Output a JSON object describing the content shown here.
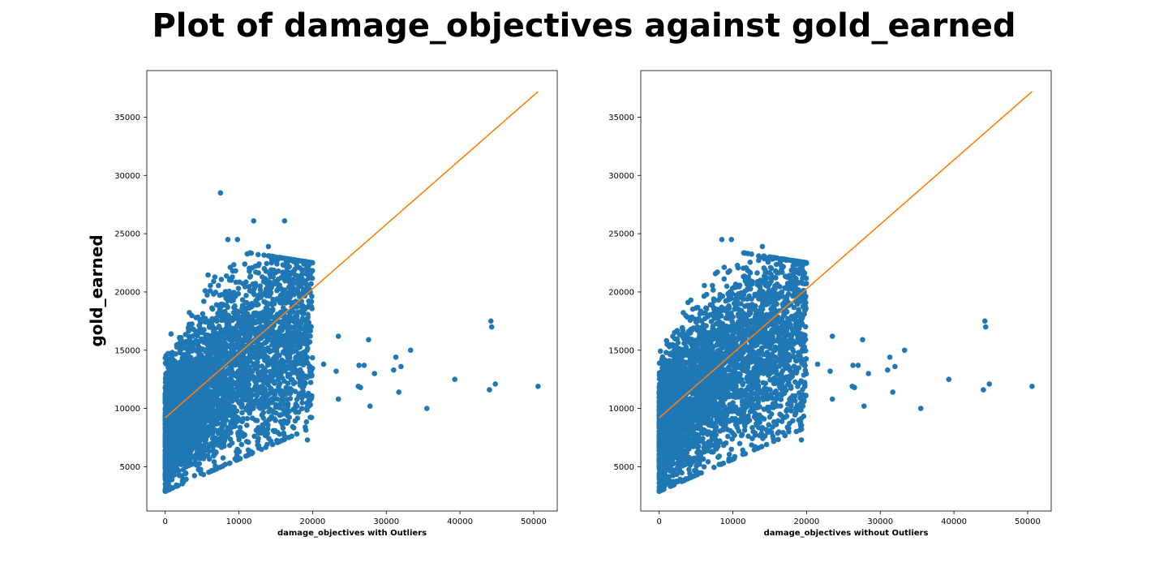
{
  "title": "Plot of damage_objectives against gold_earned",
  "chart_data": [
    {
      "type": "scatter",
      "xlabel": "damage_objectives with Outliers",
      "ylabel": "gold_earned",
      "xlim": [
        -2500,
        53200
      ],
      "ylim": [
        1200,
        39000
      ],
      "xticks": [
        0,
        10000,
        20000,
        30000,
        40000,
        50000
      ],
      "yticks": [
        5000,
        10000,
        15000,
        20000,
        25000,
        30000,
        35000
      ],
      "grid": false,
      "colors": {
        "points": "#1f77b4",
        "fit_line": "#ff7f0e"
      },
      "fit_line": {
        "x": [
          0,
          50600
        ],
        "y": [
          9200,
          37200
        ]
      },
      "cluster": {
        "x_range": [
          0,
          20000
        ],
        "y_range": [
          2900,
          24500
        ],
        "approx_count": 4000
      },
      "points": [
        {
          "x": 7500,
          "y": 28500
        },
        {
          "x": 12000,
          "y": 26100
        },
        {
          "x": 16200,
          "y": 26100
        },
        {
          "x": 8500,
          "y": 24500
        },
        {
          "x": 9800,
          "y": 24500
        },
        {
          "x": 14000,
          "y": 23900
        },
        {
          "x": 19800,
          "y": 20700
        },
        {
          "x": 18500,
          "y": 19200
        },
        {
          "x": 18800,
          "y": 16000
        },
        {
          "x": 18200,
          "y": 15500
        },
        {
          "x": 21500,
          "y": 13800
        },
        {
          "x": 23500,
          "y": 16200
        },
        {
          "x": 23200,
          "y": 13200
        },
        {
          "x": 23500,
          "y": 10800
        },
        {
          "x": 19500,
          "y": 10700
        },
        {
          "x": 19500,
          "y": 10200
        },
        {
          "x": 19300,
          "y": 7300
        },
        {
          "x": 14900,
          "y": 8100
        },
        {
          "x": 9800,
          "y": 6500
        },
        {
          "x": 13000,
          "y": 7900
        },
        {
          "x": 26200,
          "y": 11900
        },
        {
          "x": 26500,
          "y": 11800
        },
        {
          "x": 26300,
          "y": 13700
        },
        {
          "x": 27000,
          "y": 13700
        },
        {
          "x": 27600,
          "y": 15900
        },
        {
          "x": 27800,
          "y": 10200
        },
        {
          "x": 28400,
          "y": 13000
        },
        {
          "x": 31000,
          "y": 13300
        },
        {
          "x": 31300,
          "y": 14400
        },
        {
          "x": 31700,
          "y": 11400
        },
        {
          "x": 32000,
          "y": 13600
        },
        {
          "x": 33300,
          "y": 15000
        },
        {
          "x": 35500,
          "y": 10000
        },
        {
          "x": 39300,
          "y": 12500
        },
        {
          "x": 44000,
          "y": 11600
        },
        {
          "x": 44200,
          "y": 17500
        },
        {
          "x": 44300,
          "y": 17000
        },
        {
          "x": 44800,
          "y": 12100
        },
        {
          "x": 50600,
          "y": 11900
        }
      ]
    },
    {
      "type": "scatter",
      "xlabel": "damage_objectives without Outliers",
      "ylabel": "",
      "xlim": [
        -2500,
        53200
      ],
      "ylim": [
        1200,
        39000
      ],
      "xticks": [
        0,
        10000,
        20000,
        30000,
        40000,
        50000
      ],
      "yticks": [
        5000,
        10000,
        15000,
        20000,
        25000,
        30000,
        35000
      ],
      "grid": false,
      "colors": {
        "points": "#1f77b4",
        "fit_line": "#ff7f0e"
      },
      "fit_line": {
        "x": [
          0,
          50600
        ],
        "y": [
          9200,
          37200
        ]
      },
      "cluster": {
        "x_range": [
          0,
          20000
        ],
        "y_range": [
          2900,
          24500
        ],
        "approx_count": 4000
      },
      "points": [
        {
          "x": 8500,
          "y": 24500
        },
        {
          "x": 9800,
          "y": 24500
        },
        {
          "x": 14000,
          "y": 23900
        },
        {
          "x": 19800,
          "y": 20700
        },
        {
          "x": 18500,
          "y": 19200
        },
        {
          "x": 18800,
          "y": 16000
        },
        {
          "x": 18200,
          "y": 15500
        },
        {
          "x": 21500,
          "y": 13800
        },
        {
          "x": 23500,
          "y": 16200
        },
        {
          "x": 23200,
          "y": 13200
        },
        {
          "x": 23500,
          "y": 10800
        },
        {
          "x": 19500,
          "y": 10700
        },
        {
          "x": 19500,
          "y": 10200
        },
        {
          "x": 19300,
          "y": 7300
        },
        {
          "x": 14900,
          "y": 8100
        },
        {
          "x": 9800,
          "y": 6500
        },
        {
          "x": 13000,
          "y": 7900
        },
        {
          "x": 26200,
          "y": 11900
        },
        {
          "x": 26500,
          "y": 11800
        },
        {
          "x": 26300,
          "y": 13700
        },
        {
          "x": 27000,
          "y": 13700
        },
        {
          "x": 27600,
          "y": 15900
        },
        {
          "x": 27800,
          "y": 10200
        },
        {
          "x": 28400,
          "y": 13000
        },
        {
          "x": 31000,
          "y": 13300
        },
        {
          "x": 31300,
          "y": 14400
        },
        {
          "x": 31700,
          "y": 11400
        },
        {
          "x": 32000,
          "y": 13600
        },
        {
          "x": 33300,
          "y": 15000
        },
        {
          "x": 35500,
          "y": 10000
        },
        {
          "x": 39300,
          "y": 12500
        },
        {
          "x": 44000,
          "y": 11600
        },
        {
          "x": 44200,
          "y": 17500
        },
        {
          "x": 44300,
          "y": 17000
        },
        {
          "x": 44800,
          "y": 12100
        },
        {
          "x": 50600,
          "y": 11900
        }
      ]
    }
  ]
}
